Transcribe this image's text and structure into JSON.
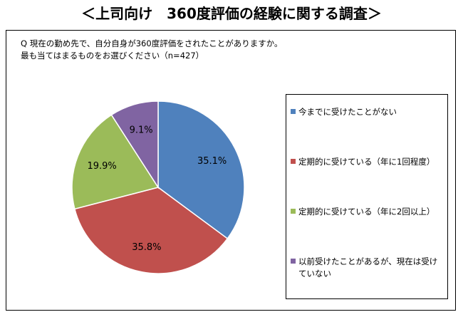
{
  "title": "＜上司向け　360度評価の経験に関する調査＞",
  "question": {
    "line1": "Q 現在の勤め先で、自分自身が360度評価をされたことがありますか。",
    "line2": "最も当てはまるものをお選びください（n=427）"
  },
  "chart_data": {
    "type": "pie",
    "title": "",
    "categories": [
      "今までに受けたことがない",
      "定期的に受けている（年に1回程度）",
      "定期的に受けている（年に2回以上）",
      "以前受けたことがあるが、現在は受けていない"
    ],
    "values": [
      35.1,
      35.8,
      19.9,
      9.1
    ],
    "value_labels": [
      "35.1%",
      "35.8%",
      "19.9%",
      "9.1%"
    ],
    "colors": [
      "#4F81BD",
      "#C0504D",
      "#9BBB59",
      "#8064A2"
    ],
    "start": "top",
    "direction": "clockwise",
    "legend_position": "right"
  }
}
